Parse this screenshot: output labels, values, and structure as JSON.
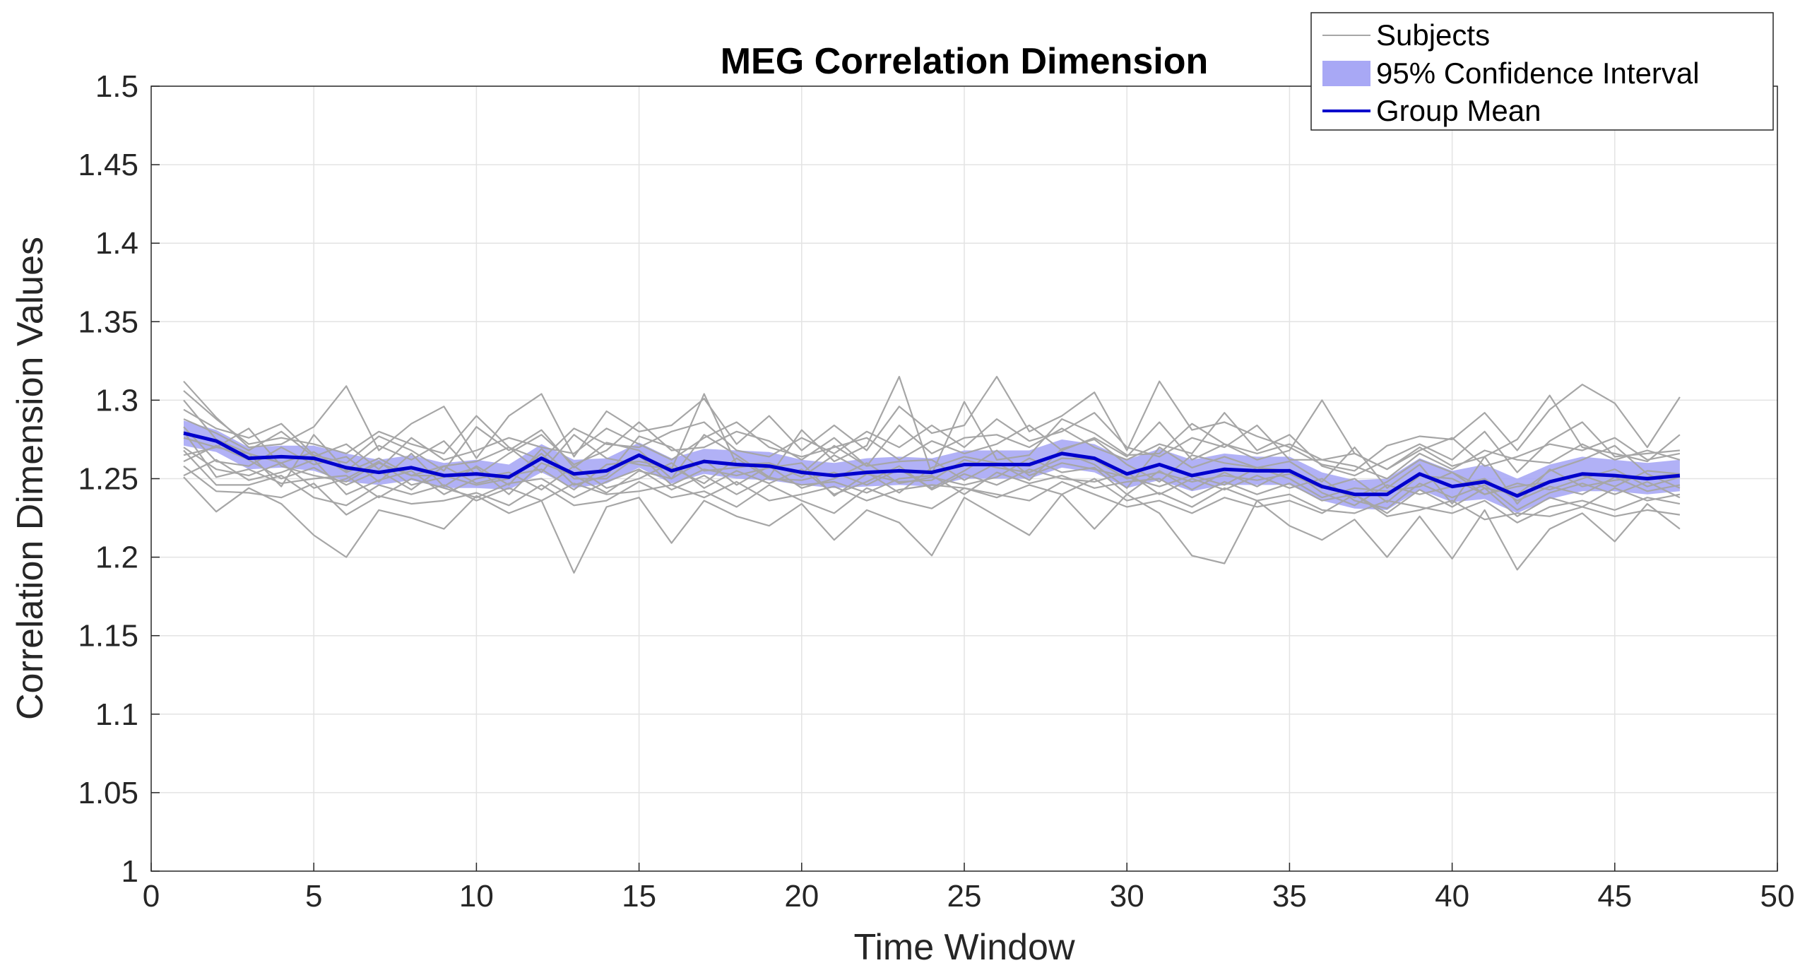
{
  "chart_data": {
    "type": "line",
    "title": "MEG Correlation Dimension",
    "xlabel": "Time Window",
    "ylabel": "Correlation Dimension Values",
    "xlim": [
      0,
      50
    ],
    "ylim": [
      1,
      1.5
    ],
    "xticks": [
      0,
      5,
      10,
      15,
      20,
      25,
      30,
      35,
      40,
      45,
      50
    ],
    "xtick_labels": [
      "0",
      "5",
      "10",
      "15",
      "20",
      "25",
      "30",
      "35",
      "40",
      "45",
      "50"
    ],
    "yticks": [
      1,
      1.05,
      1.1,
      1.15,
      1.2,
      1.25,
      1.3,
      1.35,
      1.4,
      1.45,
      1.5
    ],
    "ytick_labels": [
      "1",
      "1.05",
      "1.1",
      "1.15",
      "1.2",
      "1.25",
      "1.3",
      "1.35",
      "1.4",
      "1.45",
      "1.5"
    ],
    "grid": true,
    "legend_position": "top-right",
    "legend": [
      {
        "label": "Subjects",
        "kind": "line",
        "color": "#a6a6a6"
      },
      {
        "label": "95% Confidence Interval",
        "kind": "patch",
        "color": "#a8a8f5"
      },
      {
        "label": "Group Mean",
        "kind": "line",
        "color": "#0000cc"
      }
    ],
    "x": [
      1,
      2,
      3,
      4,
      5,
      6,
      7,
      8,
      9,
      10,
      11,
      12,
      13,
      14,
      15,
      16,
      17,
      18,
      19,
      20,
      21,
      22,
      23,
      24,
      25,
      26,
      27,
      28,
      29,
      30,
      31,
      32,
      33,
      34,
      35,
      36,
      37,
      38,
      39,
      40,
      41,
      42,
      43,
      44,
      45,
      46,
      47
    ],
    "series": [
      {
        "name": "Group Mean",
        "color": "#0000cc",
        "values": [
          1.279,
          1.274,
          1.263,
          1.264,
          1.263,
          1.257,
          1.254,
          1.257,
          1.252,
          1.253,
          1.251,
          1.263,
          1.253,
          1.255,
          1.265,
          1.255,
          1.261,
          1.259,
          1.258,
          1.254,
          1.252,
          1.254,
          1.255,
          1.254,
          1.259,
          1.259,
          1.259,
          1.266,
          1.263,
          1.253,
          1.259,
          1.252,
          1.256,
          1.255,
          1.255,
          1.245,
          1.24,
          1.24,
          1.253,
          1.245,
          1.248,
          1.239,
          1.248,
          1.253,
          1.252,
          1.25,
          1.252
        ]
      },
      {
        "name": "95% Confidence Interval",
        "color": "#a8a8f5",
        "lower": [
          1.271,
          1.267,
          1.256,
          1.257,
          1.255,
          1.248,
          1.246,
          1.249,
          1.244,
          1.244,
          1.243,
          1.254,
          1.244,
          1.247,
          1.257,
          1.247,
          1.253,
          1.25,
          1.249,
          1.246,
          1.244,
          1.245,
          1.246,
          1.245,
          1.25,
          1.25,
          1.25,
          1.257,
          1.254,
          1.244,
          1.249,
          1.242,
          1.246,
          1.246,
          1.246,
          1.236,
          1.231,
          1.23,
          1.243,
          1.235,
          1.237,
          1.228,
          1.237,
          1.242,
          1.242,
          1.24,
          1.242
        ],
        "upper": [
          1.287,
          1.281,
          1.27,
          1.271,
          1.271,
          1.266,
          1.262,
          1.265,
          1.26,
          1.262,
          1.259,
          1.272,
          1.262,
          1.263,
          1.273,
          1.263,
          1.269,
          1.268,
          1.267,
          1.262,
          1.26,
          1.263,
          1.264,
          1.263,
          1.268,
          1.268,
          1.268,
          1.275,
          1.272,
          1.262,
          1.269,
          1.262,
          1.266,
          1.264,
          1.264,
          1.254,
          1.249,
          1.25,
          1.263,
          1.255,
          1.259,
          1.25,
          1.259,
          1.264,
          1.262,
          1.26,
          1.262
        ]
      },
      {
        "name": "Subject 1",
        "color": "#a6a6a6",
        "values": [
          1.312,
          1.289,
          1.27,
          1.272,
          1.283,
          1.309,
          1.268,
          1.285,
          1.296,
          1.263,
          1.29,
          1.304,
          1.264,
          1.293,
          1.28,
          1.284,
          1.301,
          1.272,
          1.29,
          1.268,
          1.284,
          1.268,
          1.296,
          1.279,
          1.284,
          1.315,
          1.28,
          1.29,
          1.305,
          1.268,
          1.312,
          1.281,
          1.286,
          1.277,
          1.27,
          1.259,
          1.255,
          1.271,
          1.277,
          1.275,
          1.292,
          1.268,
          1.294,
          1.31,
          1.298,
          1.27,
          1.302
        ]
      },
      {
        "name": "Subject 2",
        "color": "#a6a6a6",
        "values": [
          1.294,
          1.282,
          1.276,
          1.285,
          1.265,
          1.26,
          1.277,
          1.268,
          1.255,
          1.283,
          1.268,
          1.281,
          1.257,
          1.273,
          1.268,
          1.25,
          1.278,
          1.265,
          1.251,
          1.281,
          1.261,
          1.271,
          1.315,
          1.253,
          1.299,
          1.262,
          1.265,
          1.288,
          1.279,
          1.265,
          1.266,
          1.285,
          1.272,
          1.262,
          1.268,
          1.3,
          1.266,
          1.256,
          1.27,
          1.258,
          1.264,
          1.275,
          1.303,
          1.27,
          1.266,
          1.261,
          1.278
        ]
      },
      {
        "name": "Subject 3",
        "color": "#a6a6a6",
        "values": [
          1.276,
          1.27,
          1.282,
          1.258,
          1.252,
          1.248,
          1.26,
          1.252,
          1.258,
          1.261,
          1.27,
          1.254,
          1.278,
          1.263,
          1.259,
          1.256,
          1.304,
          1.259,
          1.26,
          1.253,
          1.271,
          1.258,
          1.261,
          1.262,
          1.249,
          1.26,
          1.258,
          1.267,
          1.259,
          1.244,
          1.27,
          1.257,
          1.264,
          1.257,
          1.261,
          1.248,
          1.27,
          1.244,
          1.259,
          1.234,
          1.264,
          1.234,
          1.256,
          1.245,
          1.249,
          1.251,
          1.253
        ]
      },
      {
        "name": "Subject 4",
        "color": "#a6a6a6",
        "values": [
          1.265,
          1.27,
          1.266,
          1.26,
          1.267,
          1.254,
          1.263,
          1.252,
          1.252,
          1.246,
          1.25,
          1.266,
          1.246,
          1.252,
          1.277,
          1.27,
          1.255,
          1.257,
          1.26,
          1.251,
          1.265,
          1.254,
          1.241,
          1.257,
          1.264,
          1.26,
          1.249,
          1.269,
          1.275,
          1.259,
          1.248,
          1.265,
          1.26,
          1.257,
          1.255,
          1.246,
          1.238,
          1.248,
          1.262,
          1.254,
          1.244,
          1.24,
          1.255,
          1.262,
          1.271,
          1.253,
          1.244
        ]
      },
      {
        "name": "Subject 5",
        "color": "#a6a6a6",
        "values": [
          1.283,
          1.261,
          1.258,
          1.27,
          1.259,
          1.264,
          1.248,
          1.266,
          1.245,
          1.258,
          1.246,
          1.269,
          1.25,
          1.25,
          1.265,
          1.246,
          1.256,
          1.252,
          1.257,
          1.26,
          1.239,
          1.253,
          1.248,
          1.249,
          1.262,
          1.257,
          1.254,
          1.263,
          1.262,
          1.25,
          1.254,
          1.248,
          1.252,
          1.249,
          1.253,
          1.244,
          1.25,
          1.235,
          1.252,
          1.25,
          1.24,
          1.245,
          1.248,
          1.252,
          1.245,
          1.255,
          1.253
        ]
      },
      {
        "name": "Subject 6",
        "color": "#a6a6a6",
        "values": [
          1.261,
          1.271,
          1.262,
          1.25,
          1.257,
          1.246,
          1.255,
          1.243,
          1.258,
          1.247,
          1.252,
          1.256,
          1.243,
          1.259,
          1.261,
          1.257,
          1.247,
          1.263,
          1.25,
          1.249,
          1.254,
          1.246,
          1.256,
          1.244,
          1.255,
          1.268,
          1.252,
          1.26,
          1.256,
          1.251,
          1.245,
          1.252,
          1.246,
          1.257,
          1.25,
          1.238,
          1.244,
          1.242,
          1.245,
          1.254,
          1.24,
          1.247,
          1.243,
          1.25,
          1.256,
          1.245,
          1.251
        ]
      },
      {
        "name": "Subject 7",
        "color": "#a6a6a6",
        "values": [
          1.27,
          1.256,
          1.252,
          1.26,
          1.244,
          1.25,
          1.261,
          1.246,
          1.251,
          1.257,
          1.24,
          1.26,
          1.252,
          1.241,
          1.255,
          1.25,
          1.262,
          1.246,
          1.258,
          1.244,
          1.25,
          1.26,
          1.247,
          1.251,
          1.246,
          1.251,
          1.263,
          1.254,
          1.257,
          1.24,
          1.255,
          1.243,
          1.254,
          1.245,
          1.256,
          1.241,
          1.233,
          1.246,
          1.24,
          1.245,
          1.25,
          1.236,
          1.245,
          1.24,
          1.251,
          1.242,
          1.246
        ]
      },
      {
        "name": "Subject 8",
        "color": "#a6a6a6",
        "values": [
          1.252,
          1.262,
          1.249,
          1.254,
          1.262,
          1.24,
          1.249,
          1.255,
          1.24,
          1.25,
          1.254,
          1.243,
          1.258,
          1.244,
          1.25,
          1.26,
          1.244,
          1.255,
          1.247,
          1.256,
          1.24,
          1.248,
          1.258,
          1.243,
          1.253,
          1.246,
          1.256,
          1.25,
          1.248,
          1.254,
          1.24,
          1.25,
          1.243,
          1.252,
          1.244,
          1.25,
          1.236,
          1.231,
          1.247,
          1.238,
          1.246,
          1.23,
          1.241,
          1.247,
          1.24,
          1.248,
          1.238
        ]
      },
      {
        "name": "Subject 9",
        "color": "#a6a6a6",
        "values": [
          1.28,
          1.251,
          1.256,
          1.247,
          1.25,
          1.252,
          1.238,
          1.25,
          1.244,
          1.238,
          1.247,
          1.25,
          1.238,
          1.248,
          1.256,
          1.243,
          1.252,
          1.24,
          1.251,
          1.246,
          1.248,
          1.241,
          1.25,
          1.252,
          1.24,
          1.254,
          1.247,
          1.252,
          1.244,
          1.248,
          1.25,
          1.238,
          1.248,
          1.24,
          1.247,
          1.236,
          1.24,
          1.228,
          1.243,
          1.232,
          1.244,
          1.226,
          1.238,
          1.232,
          1.244,
          1.236,
          1.24
        ]
      },
      {
        "name": "Subject 10",
        "color": "#a6a6a6",
        "values": [
          1.268,
          1.246,
          1.246,
          1.252,
          1.238,
          1.233,
          1.246,
          1.24,
          1.246,
          1.236,
          1.244,
          1.236,
          1.247,
          1.24,
          1.242,
          1.246,
          1.238,
          1.248,
          1.236,
          1.24,
          1.245,
          1.236,
          1.243,
          1.246,
          1.244,
          1.238,
          1.246,
          1.24,
          1.25,
          1.236,
          1.241,
          1.232,
          1.244,
          1.236,
          1.24,
          1.23,
          1.228,
          1.236,
          1.232,
          1.228,
          1.236,
          1.222,
          1.232,
          1.236,
          1.23,
          1.238,
          1.234
        ]
      },
      {
        "name": "Subject 11",
        "color": "#a6a6a6",
        "values": [
          1.258,
          1.242,
          1.241,
          1.238,
          1.247,
          1.227,
          1.239,
          1.234,
          1.236,
          1.241,
          1.233,
          1.246,
          1.233,
          1.236,
          1.248,
          1.238,
          1.242,
          1.232,
          1.246,
          1.236,
          1.228,
          1.244,
          1.236,
          1.231,
          1.244,
          1.24,
          1.236,
          1.248,
          1.24,
          1.232,
          1.236,
          1.228,
          1.238,
          1.232,
          1.236,
          1.228,
          1.24,
          1.226,
          1.23,
          1.236,
          1.224,
          1.228,
          1.226,
          1.232,
          1.226,
          1.23,
          1.227
        ]
      },
      {
        "name": "Subject 12",
        "color": "#a6a6a6",
        "values": [
          1.251,
          1.229,
          1.244,
          1.234,
          1.214,
          1.2,
          1.23,
          1.225,
          1.218,
          1.239,
          1.228,
          1.236,
          1.19,
          1.232,
          1.238,
          1.209,
          1.236,
          1.226,
          1.22,
          1.234,
          1.211,
          1.23,
          1.222,
          1.201,
          1.238,
          1.226,
          1.214,
          1.24,
          1.218,
          1.24,
          1.228,
          1.201,
          1.196,
          1.236,
          1.22,
          1.211,
          1.224,
          1.2,
          1.226,
          1.199,
          1.23,
          1.192,
          1.218,
          1.228,
          1.21,
          1.234,
          1.218
        ]
      },
      {
        "name": "Subject 13",
        "color": "#a6a6a6",
        "values": [
          1.3,
          1.275,
          1.266,
          1.245,
          1.278,
          1.255,
          1.271,
          1.262,
          1.274,
          1.252,
          1.266,
          1.278,
          1.259,
          1.268,
          1.286,
          1.268,
          1.27,
          1.28,
          1.274,
          1.262,
          1.276,
          1.258,
          1.284,
          1.266,
          1.276,
          1.278,
          1.27,
          1.282,
          1.27,
          1.262,
          1.272,
          1.266,
          1.292,
          1.268,
          1.278,
          1.258,
          1.252,
          1.262,
          1.272,
          1.262,
          1.28,
          1.254,
          1.274,
          1.286,
          1.264,
          1.266,
          1.268
        ]
      },
      {
        "name": "Subject 14",
        "color": "#a6a6a6",
        "values": [
          1.306,
          1.288,
          1.272,
          1.276,
          1.272,
          1.266,
          1.28,
          1.272,
          1.266,
          1.29,
          1.27,
          1.262,
          1.282,
          1.272,
          1.27,
          1.28,
          1.286,
          1.268,
          1.264,
          1.276,
          1.266,
          1.28,
          1.27,
          1.284,
          1.27,
          1.288,
          1.274,
          1.28,
          1.292,
          1.27,
          1.264,
          1.276,
          1.27,
          1.284,
          1.262,
          1.262,
          1.266,
          1.256,
          1.268,
          1.276,
          1.258,
          1.264,
          1.272,
          1.268,
          1.276,
          1.262,
          1.266
        ]
      },
      {
        "name": "Subject 15",
        "color": "#a6a6a6",
        "values": [
          1.288,
          1.279,
          1.268,
          1.28,
          1.264,
          1.272,
          1.256,
          1.276,
          1.262,
          1.268,
          1.276,
          1.27,
          1.266,
          1.282,
          1.272,
          1.262,
          1.276,
          1.286,
          1.27,
          1.264,
          1.27,
          1.276,
          1.262,
          1.274,
          1.266,
          1.272,
          1.284,
          1.268,
          1.276,
          1.264,
          1.286,
          1.262,
          1.272,
          1.266,
          1.272,
          1.262,
          1.258,
          1.25,
          1.266,
          1.256,
          1.268,
          1.262,
          1.26,
          1.272,
          1.262,
          1.268,
          1.262
        ]
      }
    ]
  }
}
